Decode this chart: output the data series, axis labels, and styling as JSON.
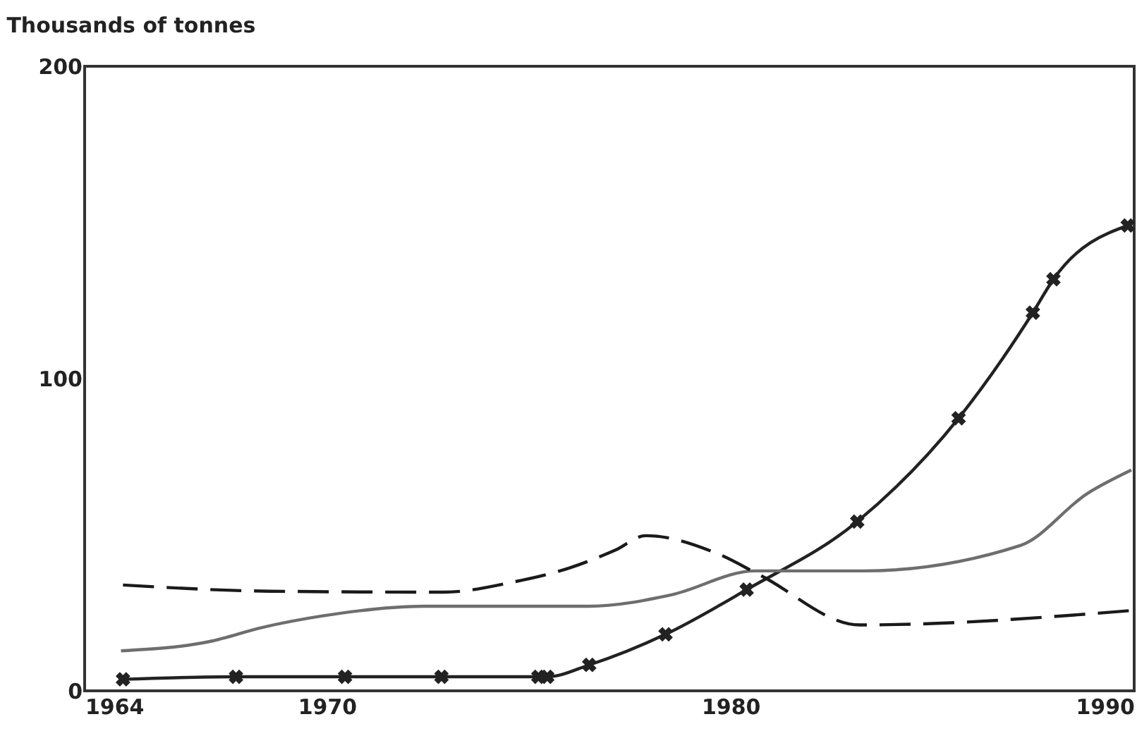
{
  "chart_data": {
    "type": "line",
    "ylabel": "Thousands of tonnes",
    "xlim": [
      1964,
      1990
    ],
    "xticks": [
      1964,
      1970,
      1980,
      1990
    ],
    "ylim": [
      0,
      200
    ],
    "yticks": [
      0,
      100,
      200
    ],
    "grid": false,
    "series": [
      {
        "color": "#222222",
        "marker": "cross",
        "line_style": "solid",
        "x": [
          1964.95,
          1967.75,
          1970.45,
          1972.84,
          1975.24,
          1975.46,
          1976.5,
          1978.39,
          1980.4,
          1983.14,
          1985.65,
          1987.49,
          1988.0,
          1989.84
        ],
        "values": [
          3.7,
          4.5,
          4.5,
          4.5,
          4.5,
          4.5,
          8.3,
          18.1,
          32.4,
          54.2,
          87.3,
          121.1,
          131.8,
          149
        ]
      },
      {
        "color": "#6e6e6e",
        "marker": "none",
        "line_style": "solid",
        "x": [
          1964.9,
          1967.1,
          1968.4,
          1969.9,
          1972.4,
          1975.46,
          1976.5,
          1978.55,
          1980.6,
          1983.28,
          1987.19,
          1988.84,
          1989.93
        ],
        "values": [
          12.8,
          15.8,
          20.3,
          24,
          27.1,
          27.1,
          27.1,
          30.8,
          38.4,
          38.4,
          46.6,
          63.2,
          70.7
        ]
      },
      {
        "color": "#1a1a1a",
        "marker": "none",
        "line_style": "dashed",
        "x": [
          1964.95,
          1968.6,
          1972.9,
          1974.6,
          1976.0,
          1977.15,
          1977.9,
          1979.7,
          1980.74,
          1983.2,
          1989.92
        ],
        "values": [
          33.9,
          31.9,
          31.6,
          34.8,
          39.3,
          45.1,
          49.7,
          43.8,
          37,
          21.1,
          25.7
        ]
      }
    ]
  }
}
